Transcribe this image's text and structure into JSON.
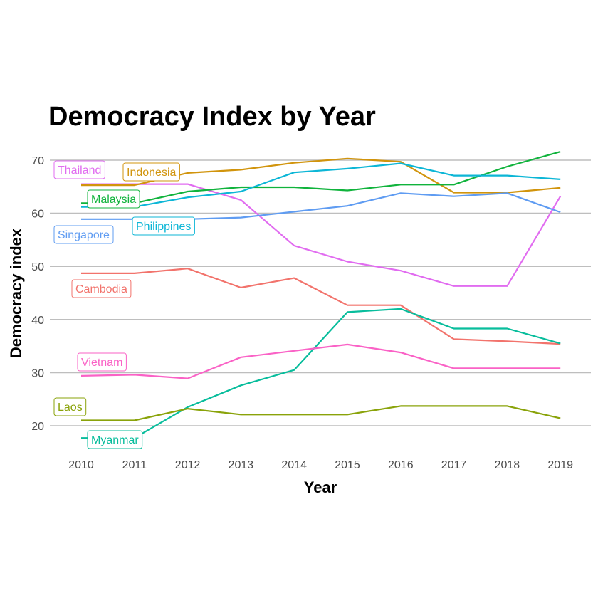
{
  "chart_data": {
    "type": "line",
    "title": "Democracy Index by Year",
    "xlabel": "Year",
    "ylabel": "Democracy index",
    "x": [
      2010,
      2011,
      2012,
      2013,
      2014,
      2015,
      2016,
      2017,
      2018,
      2019
    ],
    "y_ticks": [
      20,
      30,
      40,
      50,
      60,
      70
    ],
    "ylim": [
      15,
      73
    ],
    "grid": true,
    "legend": "direct labels at left",
    "series": [
      {
        "name": "Thailand",
        "color": "#e16cf0",
        "values": [
          65.5,
          65.5,
          65.5,
          62.5,
          53.9,
          50.9,
          49.2,
          46.3,
          46.3,
          63.2
        ]
      },
      {
        "name": "Indonesia",
        "color": "#d1940c",
        "values": [
          65.3,
          65.3,
          67.6,
          68.2,
          69.5,
          70.3,
          69.7,
          63.9,
          63.9,
          64.8
        ]
      },
      {
        "name": "Malaysia",
        "color": "#10b33c",
        "values": [
          61.9,
          61.9,
          64.1,
          64.9,
          64.9,
          64.3,
          65.4,
          65.4,
          68.8,
          71.6
        ]
      },
      {
        "name": "Philippines",
        "color": "#0cb6d6",
        "values": [
          61.2,
          61.2,
          63.0,
          64.1,
          67.7,
          68.4,
          69.4,
          67.1,
          67.1,
          66.4
        ]
      },
      {
        "name": "Singapore",
        "color": "#5f9cf2",
        "values": [
          58.9,
          58.9,
          58.9,
          59.2,
          60.3,
          61.4,
          63.8,
          63.2,
          63.8,
          60.2
        ]
      },
      {
        "name": "Cambodia",
        "color": "#f2736c",
        "values": [
          48.7,
          48.7,
          49.6,
          46.0,
          47.8,
          42.7,
          42.7,
          36.3,
          35.9,
          35.4
        ]
      },
      {
        "name": "Myanmar",
        "color": "#08bd9c",
        "values": [
          17.7,
          17.7,
          23.5,
          27.6,
          30.5,
          41.4,
          42.0,
          38.3,
          38.3,
          35.5
        ]
      },
      {
        "name": "Vietnam",
        "color": "#fa62c6",
        "values": [
          29.4,
          29.6,
          28.9,
          32.9,
          34.1,
          35.3,
          33.8,
          30.8,
          30.8,
          30.8
        ]
      },
      {
        "name": "Laos",
        "color": "#8aa30a",
        "values": [
          21.0,
          21.0,
          23.2,
          22.1,
          22.1,
          22.1,
          23.7,
          23.7,
          23.7,
          21.4
        ]
      }
    ]
  }
}
